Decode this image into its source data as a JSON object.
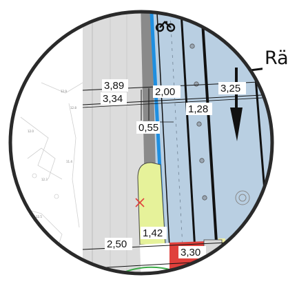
{
  "callout": {
    "text": "Rä"
  },
  "dimensions": [
    "3,89",
    "3,34",
    "2,00",
    "3,25",
    "1,28",
    "0,55",
    "1,42",
    "2,50",
    "3,30"
  ],
  "colors": {
    "road_blue": "#b9cfe2",
    "sidewalk_gray": "#dcdcdc",
    "green_island": "#e6f29a",
    "red_block": "#e0403c",
    "cycle_blue": "#1f8fe0",
    "ring": "#2a2a2a"
  },
  "icons": [
    "bicycle-icon",
    "arrow-down-icon",
    "tree-symbol-icon",
    "x-mark-icon"
  ]
}
